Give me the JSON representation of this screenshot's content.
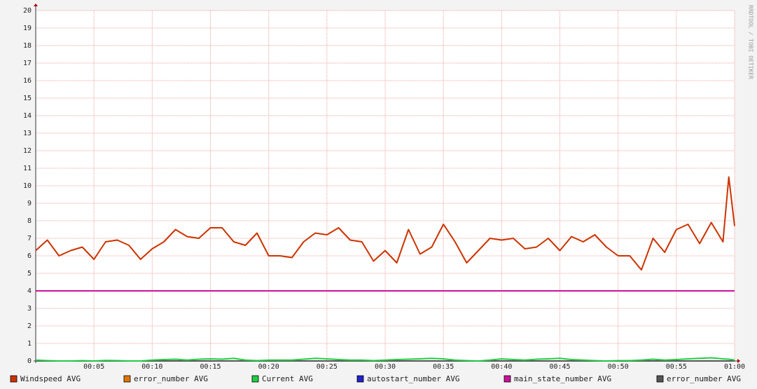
{
  "chart_data": {
    "type": "line",
    "x": [
      0,
      1,
      2,
      3,
      4,
      5,
      6,
      7,
      8,
      9,
      10,
      11,
      12,
      13,
      14,
      15,
      16,
      17,
      18,
      19,
      20,
      21,
      22,
      23,
      24,
      25,
      26,
      27,
      28,
      29,
      30,
      31,
      32,
      33,
      34,
      35,
      36,
      37,
      38,
      39,
      40,
      41,
      42,
      43,
      44,
      45,
      46,
      47,
      48,
      49,
      50,
      51,
      52,
      53,
      54,
      55,
      56,
      57,
      58,
      59,
      59.5,
      60
    ],
    "xlim": [
      0,
      60
    ],
    "xticks": [
      {
        "value": 5,
        "label": "00:05"
      },
      {
        "value": 10,
        "label": "00:10"
      },
      {
        "value": 15,
        "label": "00:15"
      },
      {
        "value": 20,
        "label": "00:20"
      },
      {
        "value": 25,
        "label": "00:25"
      },
      {
        "value": 30,
        "label": "00:30"
      },
      {
        "value": 35,
        "label": "00:35"
      },
      {
        "value": 40,
        "label": "00:40"
      },
      {
        "value": 45,
        "label": "00:45"
      },
      {
        "value": 50,
        "label": "00:50"
      },
      {
        "value": 55,
        "label": "00:55"
      },
      {
        "value": 60,
        "label": "01:00"
      }
    ],
    "ylim": [
      0,
      20
    ],
    "yticks": [
      0,
      1,
      2,
      3,
      4,
      5,
      6,
      7,
      8,
      9,
      10,
      11,
      12,
      13,
      14,
      15,
      16,
      17,
      18,
      19,
      20
    ],
    "grid": true,
    "watermark": "RRDTOOL / TOBI OETIKER",
    "series": [
      {
        "name": "Windspeed AVG",
        "color": "#cc3300",
        "values": [
          6.3,
          6.9,
          6.0,
          6.3,
          6.5,
          5.8,
          6.8,
          6.9,
          6.6,
          5.8,
          6.4,
          6.8,
          7.5,
          7.1,
          7.0,
          7.6,
          7.6,
          6.8,
          6.6,
          7.3,
          6.0,
          6.0,
          5.9,
          6.8,
          7.3,
          7.2,
          7.6,
          6.9,
          6.8,
          5.7,
          6.3,
          5.6,
          7.5,
          6.1,
          6.5,
          7.8,
          6.8,
          5.6,
          6.3,
          7.0,
          6.9,
          7.0,
          6.4,
          6.5,
          7.0,
          6.3,
          7.1,
          6.8,
          7.2,
          6.5,
          6.0,
          6.0,
          5.2,
          7.0,
          6.2,
          7.5,
          7.8,
          6.7,
          7.9,
          6.8,
          10.5,
          7.7
        ]
      },
      {
        "name": "error_number AVG",
        "color": "#dd7700",
        "values": [
          0,
          0,
          0,
          0,
          0,
          0,
          0,
          0,
          0,
          0,
          0,
          0,
          0,
          0,
          0,
          0,
          0,
          0,
          0,
          0,
          0,
          0,
          0,
          0,
          0,
          0,
          0,
          0,
          0,
          0,
          0,
          0,
          0,
          0,
          0,
          0,
          0,
          0,
          0,
          0,
          0,
          0,
          0,
          0,
          0,
          0,
          0,
          0,
          0,
          0,
          0,
          0,
          0,
          0,
          0,
          0,
          0,
          0,
          0,
          0,
          0,
          0
        ]
      },
      {
        "name": "Current AVG",
        "color": "#22cc44",
        "values": [
          0.05,
          0.02,
          0,
          0,
          0.02,
          0,
          0.03,
          0.02,
          0,
          0,
          0.05,
          0.08,
          0.1,
          0.05,
          0.1,
          0.12,
          0.1,
          0.15,
          0.05,
          0.02,
          0.05,
          0.05,
          0.05,
          0.1,
          0.15,
          0.12,
          0.08,
          0.05,
          0.05,
          0.02,
          0.05,
          0.08,
          0.1,
          0.12,
          0.15,
          0.12,
          0.05,
          0.02,
          0,
          0.05,
          0.12,
          0.08,
          0.05,
          0.1,
          0.12,
          0.15,
          0.08,
          0.05,
          0.02,
          0,
          0.02,
          0.02,
          0.05,
          0.1,
          0.05,
          0.08,
          0.12,
          0.15,
          0.18,
          0.12,
          0.1,
          0.05
        ]
      },
      {
        "name": "autostart_number AVG",
        "color": "#2222cc",
        "values": [
          0,
          0,
          0,
          0,
          0,
          0,
          0,
          0,
          0,
          0,
          0,
          0,
          0,
          0,
          0,
          0,
          0,
          0,
          0,
          0,
          0,
          0,
          0,
          0,
          0,
          0,
          0,
          0,
          0,
          0,
          0,
          0,
          0,
          0,
          0,
          0,
          0,
          0,
          0,
          0,
          0,
          0,
          0,
          0,
          0,
          0,
          0,
          0,
          0,
          0,
          0,
          0,
          0,
          0,
          0,
          0,
          0,
          0,
          0,
          0,
          0,
          0
        ]
      },
      {
        "name": "main_state_number AVG",
        "color": "#cc1199",
        "values": [
          4,
          4,
          4,
          4,
          4,
          4,
          4,
          4,
          4,
          4,
          4,
          4,
          4,
          4,
          4,
          4,
          4,
          4,
          4,
          4,
          4,
          4,
          4,
          4,
          4,
          4,
          4,
          4,
          4,
          4,
          4,
          4,
          4,
          4,
          4,
          4,
          4,
          4,
          4,
          4,
          4,
          4,
          4,
          4,
          4,
          4,
          4,
          4,
          4,
          4,
          4,
          4,
          4,
          4,
          4,
          4,
          4,
          4,
          4,
          4,
          4,
          4
        ]
      },
      {
        "name": "error_number AVG",
        "color": "#555555",
        "values": [
          0,
          0,
          0,
          0,
          0,
          0,
          0,
          0,
          0,
          0,
          0,
          0,
          0,
          0,
          0,
          0,
          0,
          0,
          0,
          0,
          0,
          0,
          0,
          0,
          0,
          0,
          0,
          0,
          0,
          0,
          0,
          0,
          0,
          0,
          0,
          0,
          0,
          0,
          0,
          0,
          0,
          0,
          0,
          0,
          0,
          0,
          0,
          0,
          0,
          0,
          0,
          0,
          0,
          0,
          0,
          0,
          0,
          0,
          0,
          0,
          0,
          0
        ]
      }
    ]
  }
}
